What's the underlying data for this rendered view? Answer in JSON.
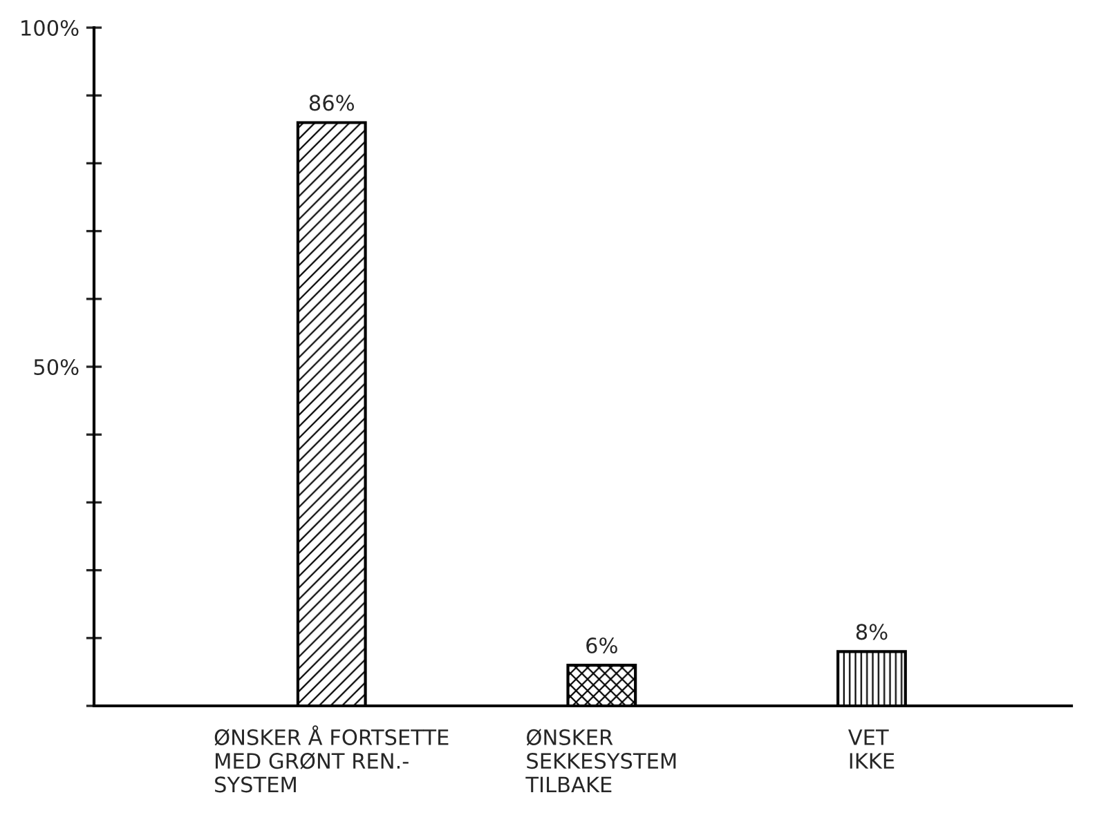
{
  "chart_data": {
    "type": "bar",
    "categories": [
      "ØNSKER Å FORTSETTE\nMED GRØNT REN.-\nSYSTEM",
      "ØNSKER\nSEKKESYSTEM\nTILBAKE",
      "VET\nIKKE"
    ],
    "values": [
      86,
      6,
      8
    ],
    "value_labels": [
      "86%",
      "6%",
      "8%"
    ],
    "colors": [
      "#000000",
      "#000000",
      "#000000"
    ],
    "ylim": [
      0,
      100
    ],
    "yticks": [
      {
        "value": 0,
        "label": null
      },
      {
        "value": 10,
        "label": null
      },
      {
        "value": 20,
        "label": null
      },
      {
        "value": 30,
        "label": null
      },
      {
        "value": 40,
        "label": null
      },
      {
        "value": 50,
        "label": "50%"
      },
      {
        "value": 60,
        "label": null
      },
      {
        "value": 70,
        "label": null
      },
      {
        "value": 80,
        "label": null
      },
      {
        "value": 90,
        "label": null
      },
      {
        "value": 100,
        "label": "100%"
      }
    ],
    "grid": false
  }
}
